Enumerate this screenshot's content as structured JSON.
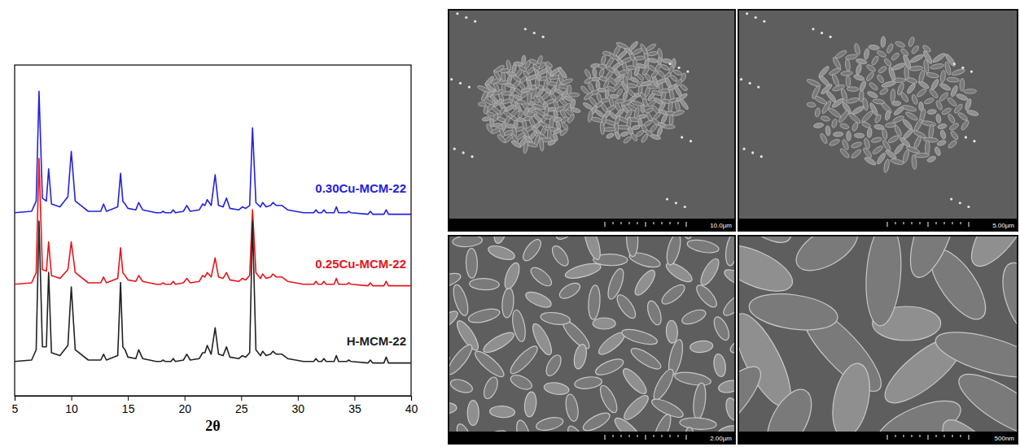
{
  "chart_data": {
    "type": "line",
    "x_label": "2θ",
    "xlim": [
      5,
      40
    ],
    "xticks": [
      5,
      10,
      15,
      20,
      25,
      30,
      35,
      40
    ],
    "ylim": [
      0,
      100
    ],
    "tick_labels": "x",
    "grid": false,
    "x": [
      5,
      6.5,
      6.9,
      7.15,
      7.45,
      7.8,
      8.0,
      8.25,
      9.0,
      9.7,
      10.0,
      10.35,
      11.5,
      12.6,
      12.85,
      13.1,
      14.1,
      14.35,
      14.55,
      14.75,
      15.0,
      15.7,
      15.95,
      16.3,
      17.5,
      17.9,
      18.1,
      18.3,
      18.8,
      19.0,
      19.2,
      19.9,
      20.2,
      20.5,
      21.3,
      21.6,
      21.8,
      22.0,
      22.35,
      22.7,
      23.0,
      23.4,
      23.7,
      24.0,
      24.8,
      25.1,
      25.4,
      25.75,
      26.0,
      26.3,
      26.7,
      26.9,
      27.2,
      27.6,
      27.8,
      28.1,
      28.6,
      29.1,
      30.5,
      31.4,
      31.6,
      31.8,
      32.1,
      32.3,
      32.5,
      33.2,
      33.4,
      33.6,
      34.3,
      34.5,
      34.7,
      36.2,
      36.4,
      36.6,
      37.6,
      37.8,
      38.0,
      40
    ],
    "series": [
      {
        "name": "0.30Cu-MCM-22",
        "color": "#2222dd",
        "values": [
          4,
          5,
          12,
          87,
          14,
          12,
          34,
          10,
          8,
          15,
          46,
          12,
          5,
          5,
          10,
          5,
          8,
          31,
          12,
          10,
          7,
          6,
          11,
          6,
          4,
          4,
          5,
          4,
          4,
          6,
          4,
          5,
          9,
          5,
          6,
          10,
          9,
          13,
          9,
          30,
          9,
          8,
          14,
          7,
          6,
          8,
          7,
          9,
          62,
          11,
          8,
          11,
          8,
          9,
          11,
          9,
          9,
          6,
          4,
          4,
          6,
          4,
          4,
          6,
          4,
          4,
          8,
          4,
          4,
          5,
          4,
          3,
          5,
          3,
          3,
          6,
          3,
          3
        ]
      },
      {
        "name": "0.25Cu-MCM-22",
        "color": "#e8151b",
        "values": [
          4,
          5,
          12,
          90,
          14,
          13,
          33,
          10,
          8,
          14,
          33,
          12,
          5,
          5,
          9,
          5,
          8,
          29,
          12,
          10,
          7,
          6,
          10,
          6,
          4,
          4,
          5,
          4,
          4,
          6,
          4,
          5,
          8,
          5,
          6,
          10,
          9,
          12,
          9,
          22,
          9,
          8,
          12,
          7,
          6,
          8,
          7,
          10,
          55,
          12,
          8,
          11,
          8,
          9,
          11,
          9,
          9,
          6,
          4,
          4,
          6,
          4,
          4,
          6,
          4,
          4,
          8,
          4,
          4,
          5,
          4,
          3,
          5,
          3,
          3,
          6,
          3,
          3
        ]
      },
      {
        "name": "H-MCM-22",
        "color": "#222222",
        "values": [
          4,
          5,
          12,
          100,
          14,
          14,
          65,
          10,
          8,
          15,
          55,
          12,
          5,
          5,
          9,
          5,
          8,
          58,
          14,
          12,
          7,
          6,
          12,
          6,
          4,
          4,
          5,
          4,
          4,
          6,
          4,
          5,
          9,
          5,
          6,
          10,
          10,
          15,
          9,
          27,
          9,
          8,
          14,
          7,
          6,
          8,
          7,
          10,
          100,
          12,
          8,
          11,
          8,
          9,
          11,
          9,
          9,
          6,
          4,
          4,
          6,
          4,
          4,
          6,
          4,
          4,
          8,
          4,
          4,
          5,
          4,
          3,
          5,
          3,
          3,
          7,
          3,
          3
        ]
      }
    ]
  },
  "images": [
    {
      "scale_bar": "10.0µm"
    },
    {
      "scale_bar": "5.00µm"
    },
    {
      "scale_bar": "2.00µm"
    },
    {
      "scale_bar": "500nm"
    }
  ]
}
